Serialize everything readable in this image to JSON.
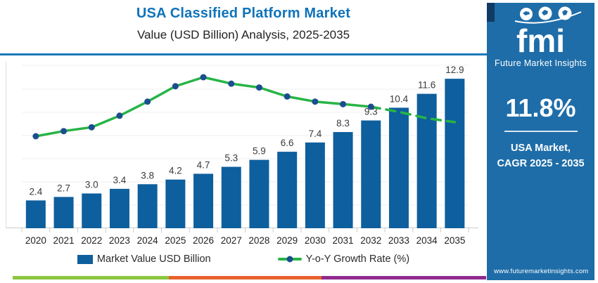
{
  "header": {
    "title": "USA Classified Platform Market",
    "subtitle": "Value (USD Billion) Analysis, 2025-2035"
  },
  "chart_data": {
    "type": "bar",
    "combo": "bar+line",
    "title": "USA Classified Platform Market Value (USD Billion) Analysis, 2025-2035",
    "categories": [
      "2020",
      "2021",
      "2022",
      "2023",
      "2024",
      "2025",
      "2026",
      "2027",
      "2028",
      "2029",
      "2030",
      "2031",
      "2032",
      "2033",
      "2034",
      "2035"
    ],
    "series": [
      {
        "name": "Market Value USD Billion",
        "type": "bar",
        "values": [
          2.4,
          2.7,
          3.0,
          3.4,
          3.8,
          4.2,
          4.7,
          5.3,
          5.9,
          6.6,
          7.4,
          8.3,
          9.3,
          10.4,
          11.6,
          12.9
        ],
        "color": "#0e5f9d"
      },
      {
        "name": "Y-o-Y Growth Rate (%)",
        "type": "line",
        "values_estimated": [
          10.2,
          10.6,
          10.9,
          11.8,
          12.9,
          14.1,
          14.8,
          14.3,
          14.0,
          13.3,
          12.9,
          12.7,
          12.5,
          12.1,
          11.6,
          11.3
        ],
        "solid_through_index": 12,
        "dashed_after": "2032",
        "line_color": "#28b446",
        "marker_color": "#1b4e8f"
      }
    ],
    "bar_labels": [
      "2.4",
      "2.7",
      "3.0",
      "3.4",
      "3.8",
      "4.2",
      "4.7",
      "5.3",
      "5.9",
      "6.6",
      "7.4",
      "8.3",
      "9.3",
      "10.4",
      "11.6",
      "12.9"
    ],
    "xlabel": "",
    "ylabel": "",
    "y_axis_labels_shown": false,
    "gridlines": true,
    "legend_position": "bottom"
  },
  "legend": {
    "bar_label": "Market Value USD Billion",
    "line_label": "Y-o-Y Growth Rate (%)"
  },
  "sidebar": {
    "logo_text": "fmi",
    "logo_subtext": "Future Market Insights",
    "cagr_value": "11.8%",
    "cagr_caption_line1": "USA Market,",
    "cagr_caption_line2": "CAGR 2025 - 2035",
    "website": "www.futuremarketinsights.com",
    "bg_color": "#1e6da8"
  },
  "footer_strip": {
    "colors": [
      "#8cc63e",
      "#e8622d",
      "#8f2b8f"
    ]
  },
  "colors": {
    "title_blue": "#0f73ba",
    "header_rule": "#1c78bc",
    "bar_blue": "#0e5f9d",
    "line_green": "#28b446",
    "marker_navy": "#1b4e8f",
    "sidebar_blue": "#1e6da8",
    "corner_accent": "#113a64"
  }
}
